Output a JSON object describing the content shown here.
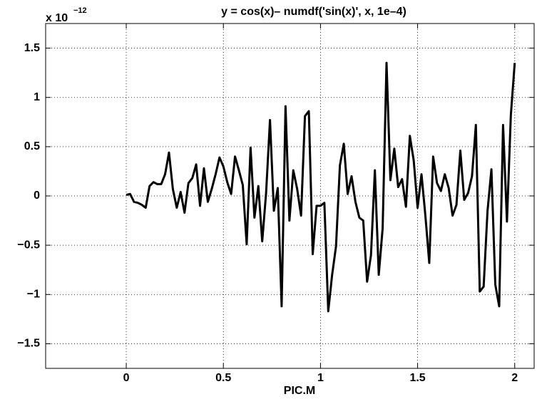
{
  "chart_data": {
    "type": "line",
    "title": "y =  cos(x)– numdf('sin(x)', x, 1e–4)",
    "y_multiplier": "x 10",
    "y_exponent": "−12",
    "xlabel": "PIC.M",
    "x": [
      0,
      0.02,
      0.04,
      0.06,
      0.08,
      0.1,
      0.12,
      0.14,
      0.16,
      0.18,
      0.2,
      0.22,
      0.24,
      0.26,
      0.28,
      0.3,
      0.32,
      0.34,
      0.36,
      0.38,
      0.4,
      0.42,
      0.44,
      0.46,
      0.48,
      0.5,
      0.52,
      0.54,
      0.56,
      0.58,
      0.6,
      0.62,
      0.64,
      0.66,
      0.68,
      0.7,
      0.72,
      0.74,
      0.76,
      0.78,
      0.8,
      0.82,
      0.84,
      0.86,
      0.88,
      0.9,
      0.92,
      0.94,
      0.96,
      0.98,
      1,
      1.02,
      1.04,
      1.06,
      1.08,
      1.1,
      1.12,
      1.14,
      1.16,
      1.18,
      1.2,
      1.22,
      1.24,
      1.26,
      1.28,
      1.3,
      1.32,
      1.34,
      1.36,
      1.38,
      1.4,
      1.42,
      1.44,
      1.46,
      1.48,
      1.5,
      1.52,
      1.54,
      1.56,
      1.58,
      1.6,
      1.62,
      1.64,
      1.66,
      1.68,
      1.7,
      1.72,
      1.74,
      1.76,
      1.78,
      1.8,
      1.82,
      1.84,
      1.86,
      1.88,
      1.9,
      1.92,
      1.94,
      1.96,
      1.98,
      2
    ],
    "values": [
      0.01,
      0.02,
      -0.06,
      -0.07,
      -0.09,
      -0.12,
      0.1,
      0.14,
      0.12,
      0.12,
      0.22,
      0.44,
      0.07,
      -0.12,
      0.04,
      -0.17,
      0.13,
      0.18,
      0.32,
      -0.1,
      0.28,
      -0.06,
      0.07,
      0.22,
      0.39,
      0.3,
      0.14,
      0.02,
      0.4,
      0.26,
      0.11,
      -0.49,
      0.49,
      -0.22,
      0.1,
      -0.46,
      0.03,
      0.77,
      -0.15,
      0.08,
      -1.12,
      0.91,
      -0.25,
      0.26,
      0.07,
      -0.2,
      0.81,
      0.86,
      -0.59,
      -0.1,
      -0.1,
      -0.07,
      -1.17,
      -0.8,
      -0.51,
      0.31,
      0.53,
      0.02,
      0.2,
      -0.06,
      -0.22,
      -0.25,
      -0.87,
      -0.6,
      0.26,
      -0.8,
      -0.33,
      1.35,
      0.16,
      0.48,
      0.09,
      0.17,
      -0.11,
      0.61,
      0.36,
      -0.12,
      0.22,
      -0.2,
      -0.68,
      0.4,
      0.13,
      0.05,
      0.22,
      0.08,
      -0.2,
      -0.09,
      0.46,
      -0.04,
      0.03,
      0.2,
      0.72,
      -0.97,
      -0.92,
      -0.15,
      0.27,
      -0.9,
      -1.12,
      0.72,
      -0.26,
      0.82,
      1.35
    ],
    "color": "#000000",
    "xlim": [
      -0.415,
      2.1
    ],
    "xticks": [
      0,
      0.5,
      1,
      1.5,
      2
    ],
    "ylim": [
      -1.75,
      1.75
    ],
    "yticks": [
      {
        "value": -1.5,
        "label": "−1.5"
      },
      {
        "value": -1,
        "label": "−1"
      },
      {
        "value": -0.5,
        "label": "−0.5"
      },
      0,
      0.5,
      1,
      1.5
    ],
    "grid": true
  }
}
